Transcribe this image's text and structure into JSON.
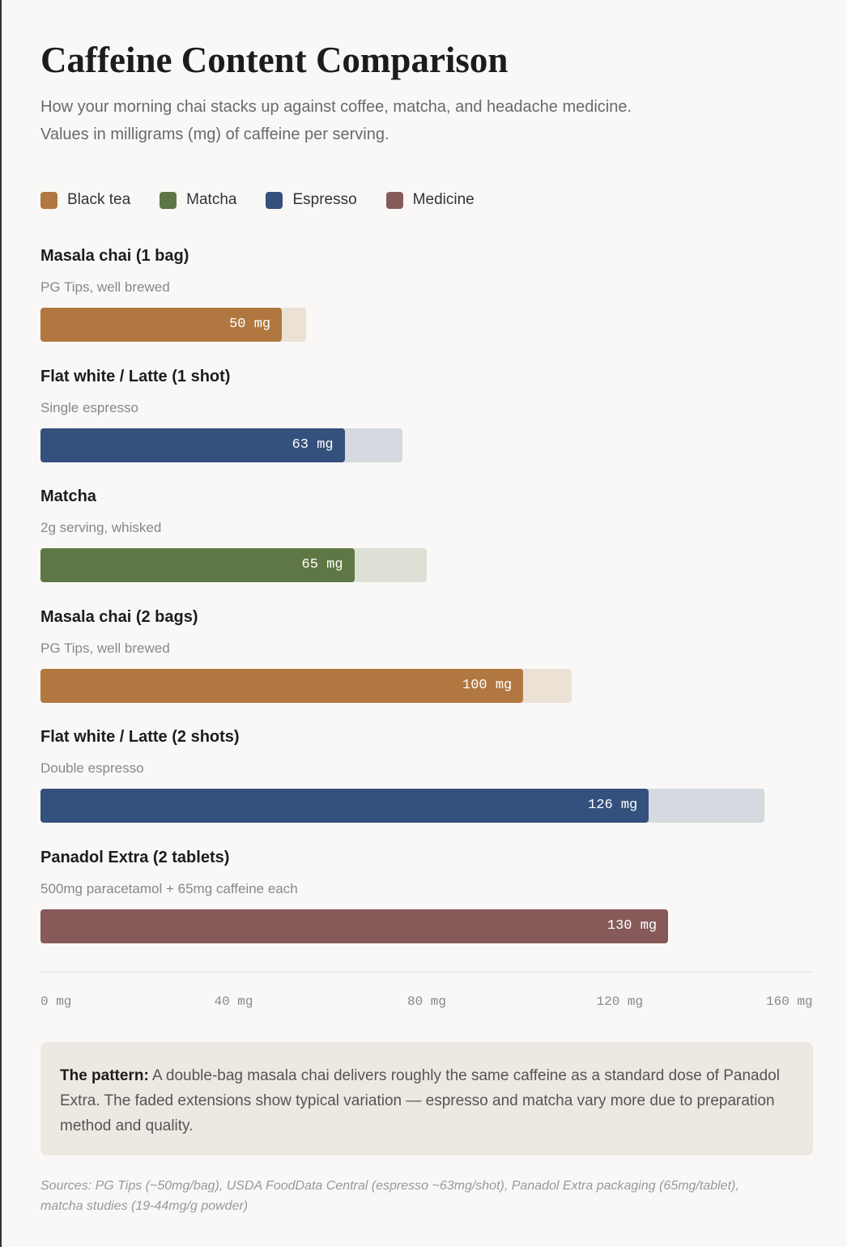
{
  "chart_data": {
    "type": "bar",
    "orientation": "horizontal",
    "title": "Caffeine Content Comparison",
    "subtitle": [
      "How your morning chai stacks up against coffee, matcha, and headache medicine.",
      "Values in milligrams (mg) of caffeine per serving."
    ],
    "categories": [
      "Masala chai (1 bag)",
      "Flat white / Latte (1 shot)",
      "Matcha",
      "Masala chai (2 bags)",
      "Flat white / Latte (2 shots)",
      "Panadol Extra (2 tablets)"
    ],
    "descriptions": [
      "PG Tips, well brewed",
      "Single espresso",
      "2g serving, whisked",
      "PG Tips, well brewed",
      "Double espresso",
      "500mg paracetamol + 65mg caffeine each"
    ],
    "series": [
      {
        "name": "Black tea",
        "color": "#b07840",
        "values": [
          50,
          null,
          null,
          100,
          null,
          null
        ],
        "value_labels": [
          "50 mg",
          null,
          null,
          "100 mg",
          null,
          null
        ],
        "range_max": [
          55,
          null,
          null,
          110,
          null,
          null
        ]
      },
      {
        "name": "Matcha",
        "color": "#5f7744",
        "values": [
          null,
          null,
          65,
          null,
          null,
          null
        ],
        "value_labels": [
          null,
          null,
          "65 mg",
          null,
          null,
          null
        ],
        "range_max": [
          null,
          null,
          80,
          null,
          null,
          null
        ]
      },
      {
        "name": "Espresso",
        "color": "#34507d",
        "values": [
          null,
          63,
          null,
          null,
          126,
          null
        ],
        "value_labels": [
          null,
          "63 mg",
          null,
          null,
          "126 mg",
          null
        ],
        "range_max": [
          null,
          75,
          null,
          null,
          150,
          null
        ]
      },
      {
        "name": "Medicine",
        "color": "#875a5a",
        "values": [
          null,
          null,
          null,
          null,
          null,
          130
        ],
        "value_labels": [
          null,
          null,
          null,
          null,
          null,
          "130 mg"
        ],
        "range_max": [
          null,
          null,
          null,
          null,
          null,
          null
        ]
      }
    ],
    "xlim": [
      0,
      160
    ],
    "xticks": [
      {
        "value": 0,
        "label": "0 mg"
      },
      {
        "value": 40,
        "label": "40 mg"
      },
      {
        "value": 80,
        "label": "80 mg"
      },
      {
        "value": 120,
        "label": "120 mg"
      },
      {
        "value": 160,
        "label": "160 mg"
      }
    ],
    "note": {
      "label": "The pattern:",
      "text": "A double-bag masala chai delivers roughly the same caffeine as a standard dose of Panadol Extra. The faded extensions show typical variation — espresso and matcha vary more due to preparation method and quality."
    },
    "sources": "Sources: PG Tips (~50mg/bag), USDA FoodData Central (espresso ~63mg/shot), Panadol Extra packaging (65mg/tablet), matcha studies (19-44mg/g powder)"
  }
}
